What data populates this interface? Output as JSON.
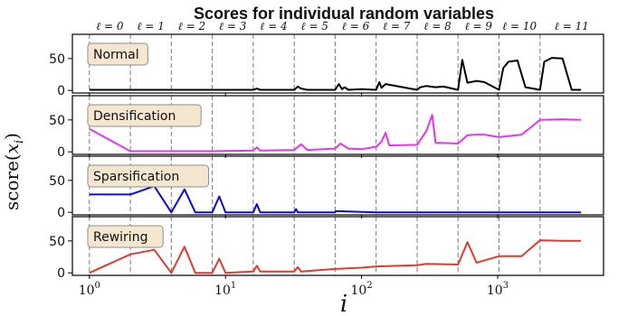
{
  "chart_data": {
    "type": "line",
    "title": "Scores for individual random variables",
    "xlabel": "i",
    "ylabel": "score(x_i)",
    "xscale": "log",
    "xlim": [
      0.75,
      6000
    ],
    "ylim": [
      -4,
      88
    ],
    "x_ticks": [
      {
        "value": 1,
        "label_base": "10",
        "label_exp": "0"
      },
      {
        "value": 10,
        "label_base": "10",
        "label_exp": "1"
      },
      {
        "value": 100,
        "label_base": "10",
        "label_exp": "2"
      },
      {
        "value": 1000,
        "label_base": "10",
        "label_exp": "3"
      }
    ],
    "y_ticks": [
      0,
      50
    ],
    "levels": [
      {
        "label": "ℓ = 0",
        "boundary": 1
      },
      {
        "label": "ℓ = 1",
        "boundary": 2
      },
      {
        "label": "ℓ = 2",
        "boundary": 4
      },
      {
        "label": "ℓ = 3",
        "boundary": 8
      },
      {
        "label": "ℓ = 4",
        "boundary": 16
      },
      {
        "label": "ℓ = 5",
        "boundary": 32
      },
      {
        "label": "ℓ = 6",
        "boundary": 64
      },
      {
        "label": "ℓ = 7",
        "boundary": 128
      },
      {
        "label": "ℓ = 8",
        "boundary": 256
      },
      {
        "label": "ℓ = 9",
        "boundary": 512
      },
      {
        "label": "ℓ = 10",
        "boundary": 1024
      },
      {
        "label": "ℓ = 11",
        "boundary": 2048
      }
    ],
    "series": [
      {
        "name": "Normal",
        "color": "#000000",
        "x": [
          1,
          2,
          4,
          8,
          16,
          17,
          18,
          20,
          32,
          34,
          36,
          40,
          64,
          68,
          72,
          75,
          80,
          100,
          128,
          135,
          140,
          150,
          256,
          270,
          300,
          350,
          400,
          512,
          550,
          600,
          700,
          800,
          1024,
          1100,
          1200,
          1400,
          1600,
          2048,
          2200,
          2500,
          3000,
          3500,
          4096
        ],
        "y": [
          1,
          1,
          1,
          1,
          1,
          3,
          1,
          1,
          1,
          6,
          3,
          1,
          1,
          10,
          2,
          5,
          1,
          2,
          1,
          13,
          4,
          10,
          1,
          5,
          7,
          5,
          6,
          1,
          48,
          12,
          15,
          13,
          1,
          35,
          45,
          47,
          5,
          1,
          45,
          51,
          50,
          1,
          1
        ]
      },
      {
        "name": "Densification",
        "color": "#e535ef",
        "x": [
          1,
          2,
          4,
          8,
          16,
          17,
          18,
          32,
          36,
          40,
          64,
          70,
          80,
          100,
          128,
          140,
          150,
          160,
          256,
          300,
          330,
          350,
          400,
          512,
          600,
          700,
          800,
          1024,
          1500,
          2048,
          3000,
          4096
        ],
        "y": [
          36,
          1,
          1,
          1,
          2,
          7,
          2,
          3,
          12,
          3,
          5,
          13,
          5,
          4,
          8,
          16,
          30,
          10,
          11,
          33,
          58,
          14,
          14,
          13,
          26,
          27,
          27,
          23,
          27,
          50,
          51,
          50
        ]
      },
      {
        "name": "Sparsification",
        "color": "#0a0ae6",
        "x": [
          1,
          2,
          3,
          4,
          5,
          6,
          8,
          9,
          10,
          16,
          17,
          18,
          32,
          33,
          34,
          64,
          65,
          128,
          256,
          512,
          1024,
          2048,
          4096
        ],
        "y": [
          28,
          28,
          41,
          0,
          36,
          0,
          0,
          25,
          0,
          0,
          13,
          0,
          0,
          5,
          0,
          0,
          2,
          0,
          0,
          0,
          0,
          0,
          0
        ]
      },
      {
        "name": "Rewiring",
        "color": "#e23b2e",
        "x": [
          1,
          2,
          3,
          4,
          5,
          6,
          8,
          9,
          10,
          16,
          17,
          18,
          32,
          34,
          36,
          64,
          100,
          128,
          256,
          300,
          512,
          600,
          700,
          1024,
          1500,
          2048,
          3000,
          4096
        ],
        "y": [
          0,
          29,
          36,
          0,
          41,
          0,
          0,
          22,
          0,
          2,
          11,
          2,
          2,
          9,
          2,
          6,
          8,
          10,
          12,
          14,
          13,
          48,
          16,
          26,
          26,
          51,
          50,
          50
        ]
      }
    ]
  }
}
